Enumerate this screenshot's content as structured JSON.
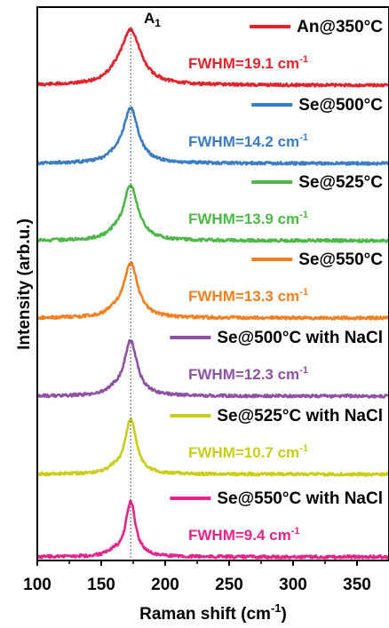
{
  "chart_data": {
    "type": "line",
    "xlabel": "Raman shift (cm",
    "xlabel_sup": "-1",
    "xlabel_end": ")",
    "ylabel": "Intensity (arb.u.)",
    "xlim": [
      100,
      375
    ],
    "xticks": [
      100,
      150,
      200,
      250,
      300,
      350
    ],
    "peak_label": "A",
    "peak_label_sub": "1",
    "peak_position": 173,
    "series": [
      {
        "name": "An@350°C",
        "fwhm_label": "FWHM=19.1 cm",
        "fwhm_sup": "-1",
        "fwhm": 19.1,
        "color": "#e0242b"
      },
      {
        "name": "Se@500°C",
        "fwhm_label": "FWHM=14.2 cm",
        "fwhm_sup": "-1",
        "fwhm": 14.2,
        "color": "#3b7dc4"
      },
      {
        "name": "Se@525°C",
        "fwhm_label": "FWHM=13.9 cm",
        "fwhm_sup": "-1",
        "fwhm": 13.9,
        "color": "#4cb847"
      },
      {
        "name": "Se@550°C",
        "fwhm_label": "FWHM=13.3 cm",
        "fwhm_sup": "-1",
        "fwhm": 13.3,
        "color": "#f47f1f"
      },
      {
        "name": "Se@500°C with NaCl",
        "fwhm_label": "FWHM=12.3 cm",
        "fwhm_sup": "-1",
        "fwhm": 12.3,
        "color": "#8e51a4"
      },
      {
        "name": "Se@525°C with NaCl",
        "fwhm_label": "FWHM=10.7 cm",
        "fwhm_sup": "-1",
        "fwhm": 10.7,
        "color": "#c9cc18"
      },
      {
        "name": "Se@550°C with NaCl",
        "fwhm_label": "FWHM=9.4 cm",
        "fwhm_sup": "-1",
        "fwhm": 9.4,
        "color": "#e6238a"
      }
    ]
  }
}
